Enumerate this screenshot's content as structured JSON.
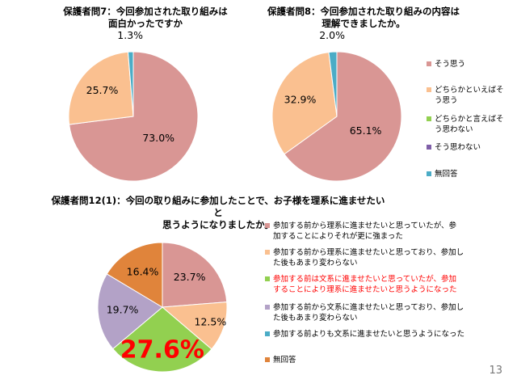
{
  "page_number": "13",
  "colors": {
    "c1": "#d99694",
    "c2": "#fac090",
    "c3": "#92d050",
    "c4": "#b3a2c7",
    "c5": "#4bacc6",
    "c6": "#e0843b"
  },
  "legend_top": [
    {
      "label": "そう思う",
      "color": "#d99694"
    },
    {
      "label": "どちらかといえばそ\nう思う",
      "color": "#fac090"
    },
    {
      "label": "どちらかと言えばそ\nう思わない",
      "color": "#92d050"
    },
    {
      "label": "そう思わない",
      "color": "#7f5fa8"
    },
    {
      "label": "無回答",
      "color": "#4bacc6"
    }
  ],
  "legend_bottom": [
    {
      "label": "参加する前から理系に進ませたいと思っていたが、参\n加することによりそれが更に強まった",
      "color": "#d99694",
      "highlight": false
    },
    {
      "label": "参加する前から理系に進ませたいと思っており、参加し\nた後もあまり変わらない",
      "color": "#fac090",
      "highlight": false
    },
    {
      "label": "参加する前は文系に進ませたいと思っていたが、参加\nすることにより理系に進ませたいと思うようになった",
      "color": "#92d050",
      "highlight": true
    },
    {
      "label": "参加する前から文系に進ませたいと思っており、参加し\nた後もあまり変わらない",
      "color": "#b3a2c7",
      "highlight": false
    },
    {
      "label": "参加する前よりも文系に進ませたいと思うようになった",
      "color": "#4bacc6",
      "highlight": false
    },
    {
      "label": "無回答",
      "color": "#e0843b",
      "highlight": false
    }
  ],
  "chart_data": [
    {
      "type": "pie",
      "title": "保護者問7：今回参加された取り組みは\n面白かったですか",
      "slices": [
        {
          "value": 73.0,
          "label": "73.0%",
          "color": "#d99694"
        },
        {
          "value": 25.7,
          "label": "25.7%",
          "color": "#fac090"
        },
        {
          "value": 1.3,
          "label": "1.3%",
          "color": "#4bacc6"
        }
      ]
    },
    {
      "type": "pie",
      "title": "保護者問8：今回参加された取り組みの内容は\n理解できましたか。",
      "slices": [
        {
          "value": 65.1,
          "label": "65.1%",
          "color": "#d99694"
        },
        {
          "value": 32.9,
          "label": "32.9%",
          "color": "#fac090"
        },
        {
          "value": 2.0,
          "label": "2.0%",
          "color": "#4bacc6"
        }
      ]
    },
    {
      "type": "pie",
      "title": "保護者問12(1)：今回の取り組みに参加したことで、お子様を理系に進ませたいと\n思うようになりましたか。",
      "slices": [
        {
          "value": 23.7,
          "label": "23.7%",
          "color": "#d99694"
        },
        {
          "value": 12.5,
          "label": "12.5%",
          "color": "#fac090"
        },
        {
          "value": 27.6,
          "label": "27.6%",
          "color": "#92d050",
          "emphasis": true
        },
        {
          "value": 19.7,
          "label": "19.7%",
          "color": "#b3a2c7"
        },
        {
          "value": 0.0,
          "label": "",
          "color": "#4bacc6"
        },
        {
          "value": 16.4,
          "label": "16.4%",
          "color": "#e0843b"
        }
      ]
    }
  ]
}
